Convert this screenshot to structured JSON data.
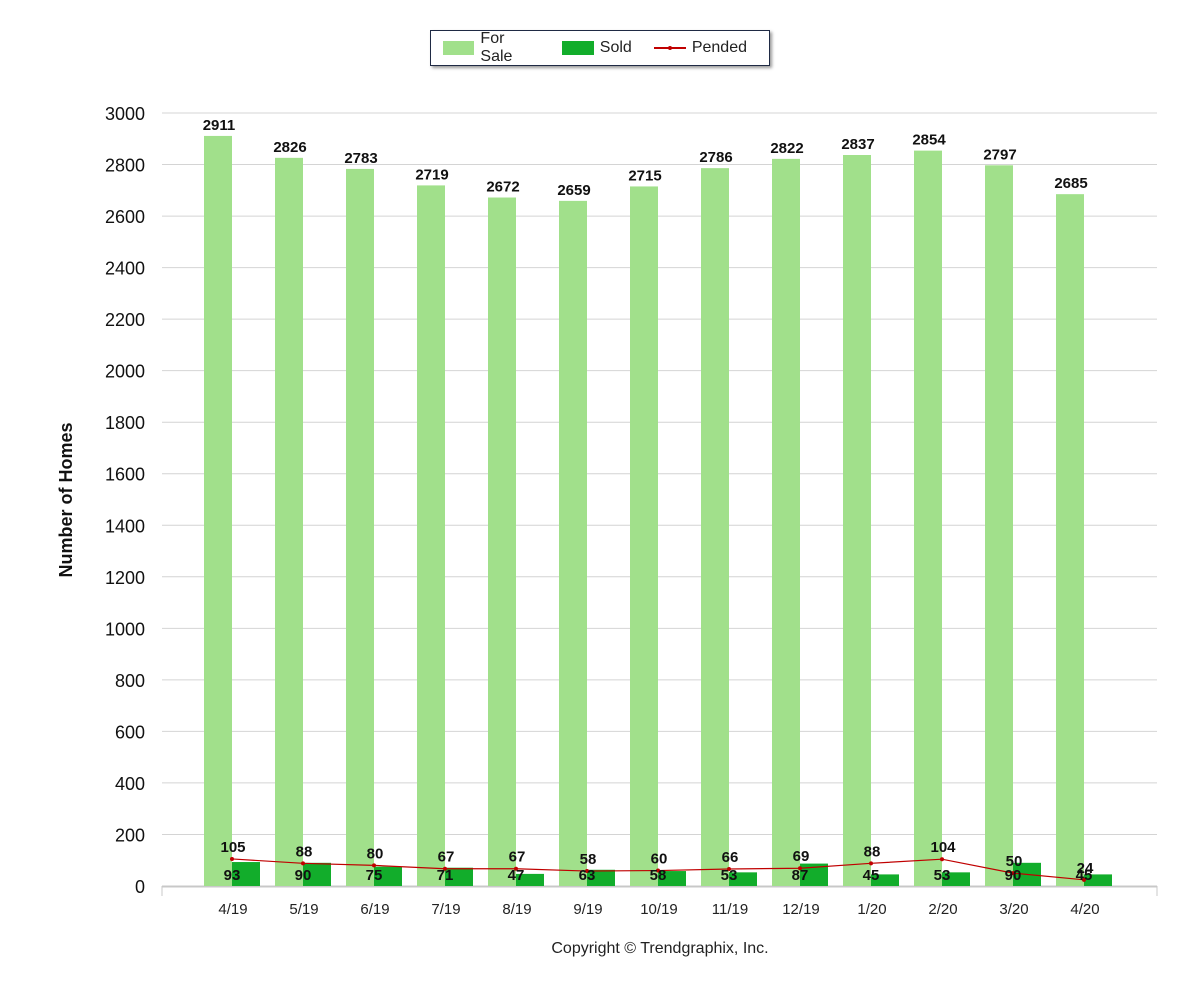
{
  "chart_data": {
    "type": "bar",
    "categories": [
      "4/19",
      "5/19",
      "6/19",
      "7/19",
      "8/19",
      "9/19",
      "10/19",
      "11/19",
      "12/19",
      "1/20",
      "2/20",
      "3/20",
      "4/20"
    ],
    "series": [
      {
        "name": "For Sale",
        "type": "bar",
        "color": "#a1e08b",
        "values": [
          2911,
          2826,
          2783,
          2719,
          2672,
          2659,
          2715,
          2786,
          2822,
          2837,
          2854,
          2797,
          2685
        ]
      },
      {
        "name": "Sold",
        "type": "bar",
        "color": "#12ad2b",
        "values": [
          93,
          90,
          75,
          71,
          47,
          63,
          58,
          53,
          87,
          45,
          53,
          90,
          45
        ]
      },
      {
        "name": "Pended",
        "type": "line",
        "color": "#c00000",
        "values": [
          105,
          88,
          80,
          67,
          67,
          58,
          60,
          66,
          69,
          88,
          104,
          50,
          24
        ]
      }
    ],
    "ylabel": "Number of Homes",
    "xlabel": "",
    "ylim": [
      0,
      3000
    ],
    "yticks": [
      0,
      200,
      400,
      600,
      800,
      1000,
      1200,
      1400,
      1600,
      1800,
      2000,
      2200,
      2400,
      2600,
      2800,
      3000
    ],
    "grid": true,
    "legend_position": "top-center"
  },
  "legend": {
    "for_sale": "For Sale",
    "sold": "Sold",
    "pended": "Pended"
  },
  "copyright": "Copyright © Trendgraphix, Inc."
}
